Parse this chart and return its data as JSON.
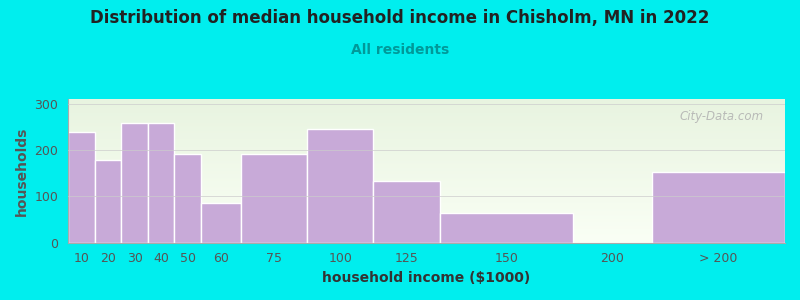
{
  "title": "Distribution of median household income in Chisholm, MN in 2022",
  "subtitle": "All residents",
  "xlabel": "household income ($1000)",
  "ylabel": "households",
  "background_fig": "#00EEEE",
  "bar_color": "#c8aad8",
  "bar_edge_color": "#ffffff",
  "categories": [
    "10",
    "20",
    "30",
    "40",
    "50",
    "60",
    "75",
    "100",
    "125",
    "150",
    "200",
    "> 200"
  ],
  "values": [
    238,
    178,
    258,
    258,
    192,
    85,
    192,
    245,
    133,
    65,
    0,
    153
  ],
  "positions": [
    10,
    20,
    30,
    40,
    50,
    60,
    75,
    100,
    125,
    150,
    200,
    230
  ],
  "widths": [
    10,
    10,
    10,
    10,
    10,
    15,
    25,
    25,
    25,
    50,
    30,
    50
  ],
  "ylim": [
    0,
    310
  ],
  "yticks": [
    0,
    100,
    200,
    300
  ],
  "xlim": [
    10,
    280
  ],
  "title_fontsize": 12,
  "subtitle_fontsize": 10,
  "axis_label_fontsize": 10,
  "tick_fontsize": 9,
  "watermark": "City-Data.com",
  "ylabel_color": "#555555",
  "subtitle_color": "#009999",
  "title_color": "#222222"
}
